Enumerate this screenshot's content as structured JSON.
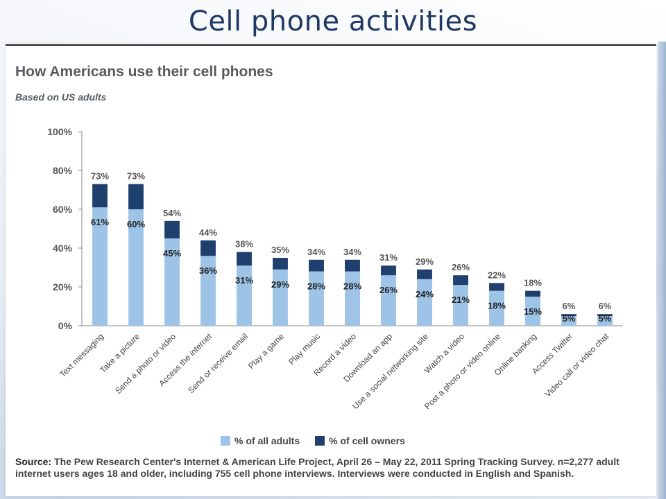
{
  "slide_title": "Cell phone activities",
  "chart_data": {
    "type": "bar",
    "title": "How Americans use their cell phones",
    "subtitle": "Based on US adults",
    "ylim": [
      0,
      100
    ],
    "yticks": [
      "0%",
      "20%",
      "40%",
      "60%",
      "80%",
      "100%"
    ],
    "categories": [
      "Text messaging",
      "Take a picture",
      "Send a photo or video",
      "Access the internet",
      "Send or receive email",
      "Play a game",
      "Play music",
      "Record a video",
      "Download an app",
      "Use a social networking site",
      "Watch a video",
      "Post a photo or video online",
      "Online banking",
      "Access Twitter",
      "Video call or video chat"
    ],
    "series": [
      {
        "name": "% of all adults",
        "values": [
          61,
          60,
          45,
          36,
          31,
          29,
          28,
          28,
          26,
          24,
          21,
          18,
          15,
          5,
          5
        ],
        "labels": [
          "61%",
          "60%",
          "45%",
          "36%",
          "31%",
          "29%",
          "28%",
          "28%",
          "26%",
          "24%",
          "21%",
          "18%",
          "15%",
          "5%",
          "5%"
        ]
      },
      {
        "name": "% of cell owners",
        "values": [
          73,
          73,
          54,
          44,
          38,
          35,
          34,
          34,
          31,
          29,
          26,
          22,
          18,
          6,
          6
        ],
        "labels": [
          "73%",
          "73%",
          "54%",
          "44%",
          "38%",
          "35%",
          "34%",
          "34%",
          "31%",
          "29%",
          "26%",
          "22%",
          "18%",
          "6%",
          "6%"
        ]
      }
    ],
    "colors": {
      "all_adults": "#9dc3e6",
      "cell_owners": "#1f3f6e"
    },
    "legend_placement": "bottom"
  },
  "source": {
    "label": "Source:",
    "text": "The Pew Research Center's Internet & American Life Project, April 26 – May 22, 2011 Spring Tracking Survey. n=2,277 adult internet users ages 18 and older, including 755 cell phone interviews. Interviews were conducted in English and Spanish."
  }
}
